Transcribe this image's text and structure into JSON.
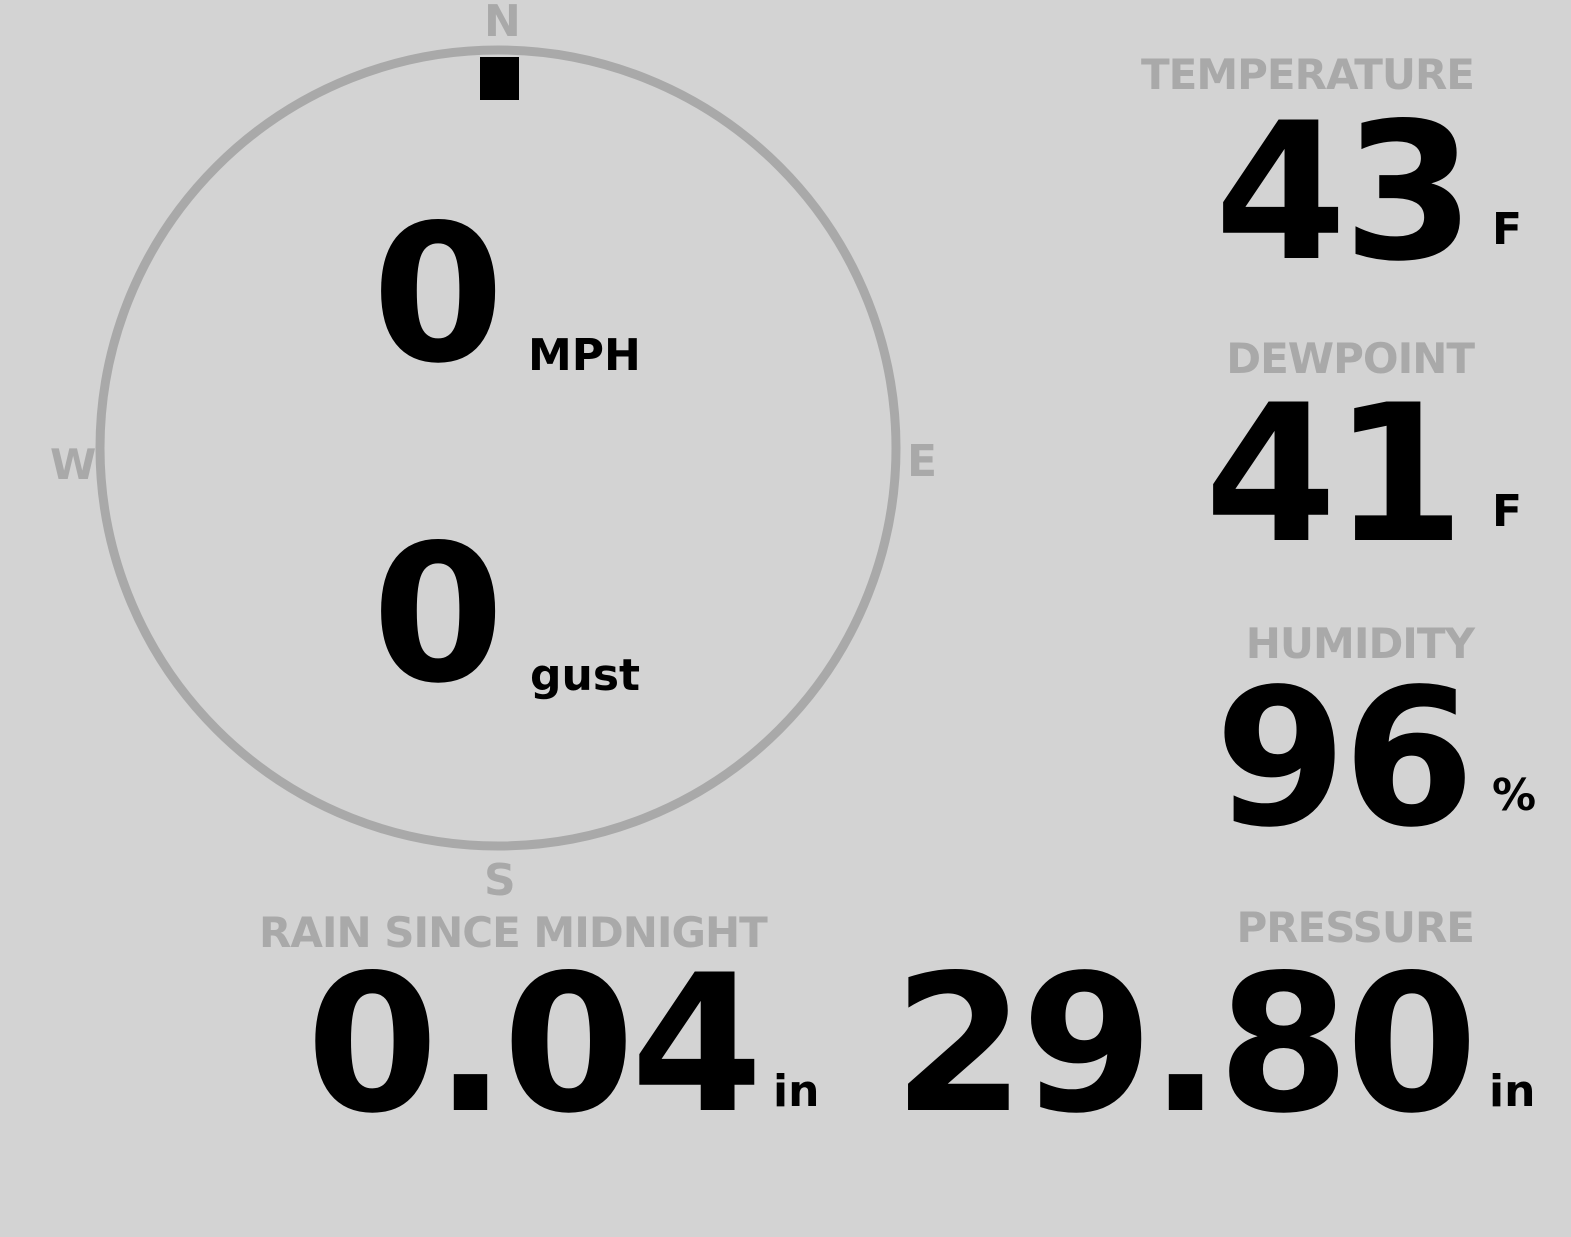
{
  "colors": {
    "background": "#d3d3d3",
    "label": "#a9a9a9",
    "value": "#000000"
  },
  "wind": {
    "compass": {
      "n": "N",
      "e": "E",
      "s": "S",
      "w": "W"
    },
    "direction_deg": 0,
    "speed": "0",
    "speed_unit": "MPH",
    "gust": "0",
    "gust_unit": "gust"
  },
  "temperature": {
    "label": "TEMPERATURE",
    "value": "43",
    "unit": "F"
  },
  "dewpoint": {
    "label": "DEWPOINT",
    "value": "41",
    "unit": "F"
  },
  "humidity": {
    "label": "HUMIDITY",
    "value": "96",
    "unit": "%"
  },
  "rain": {
    "label": "RAIN SINCE MIDNIGHT",
    "value": "0.04",
    "unit": "in"
  },
  "pressure": {
    "label": "PRESSURE",
    "value": "29.80",
    "unit": "in"
  }
}
